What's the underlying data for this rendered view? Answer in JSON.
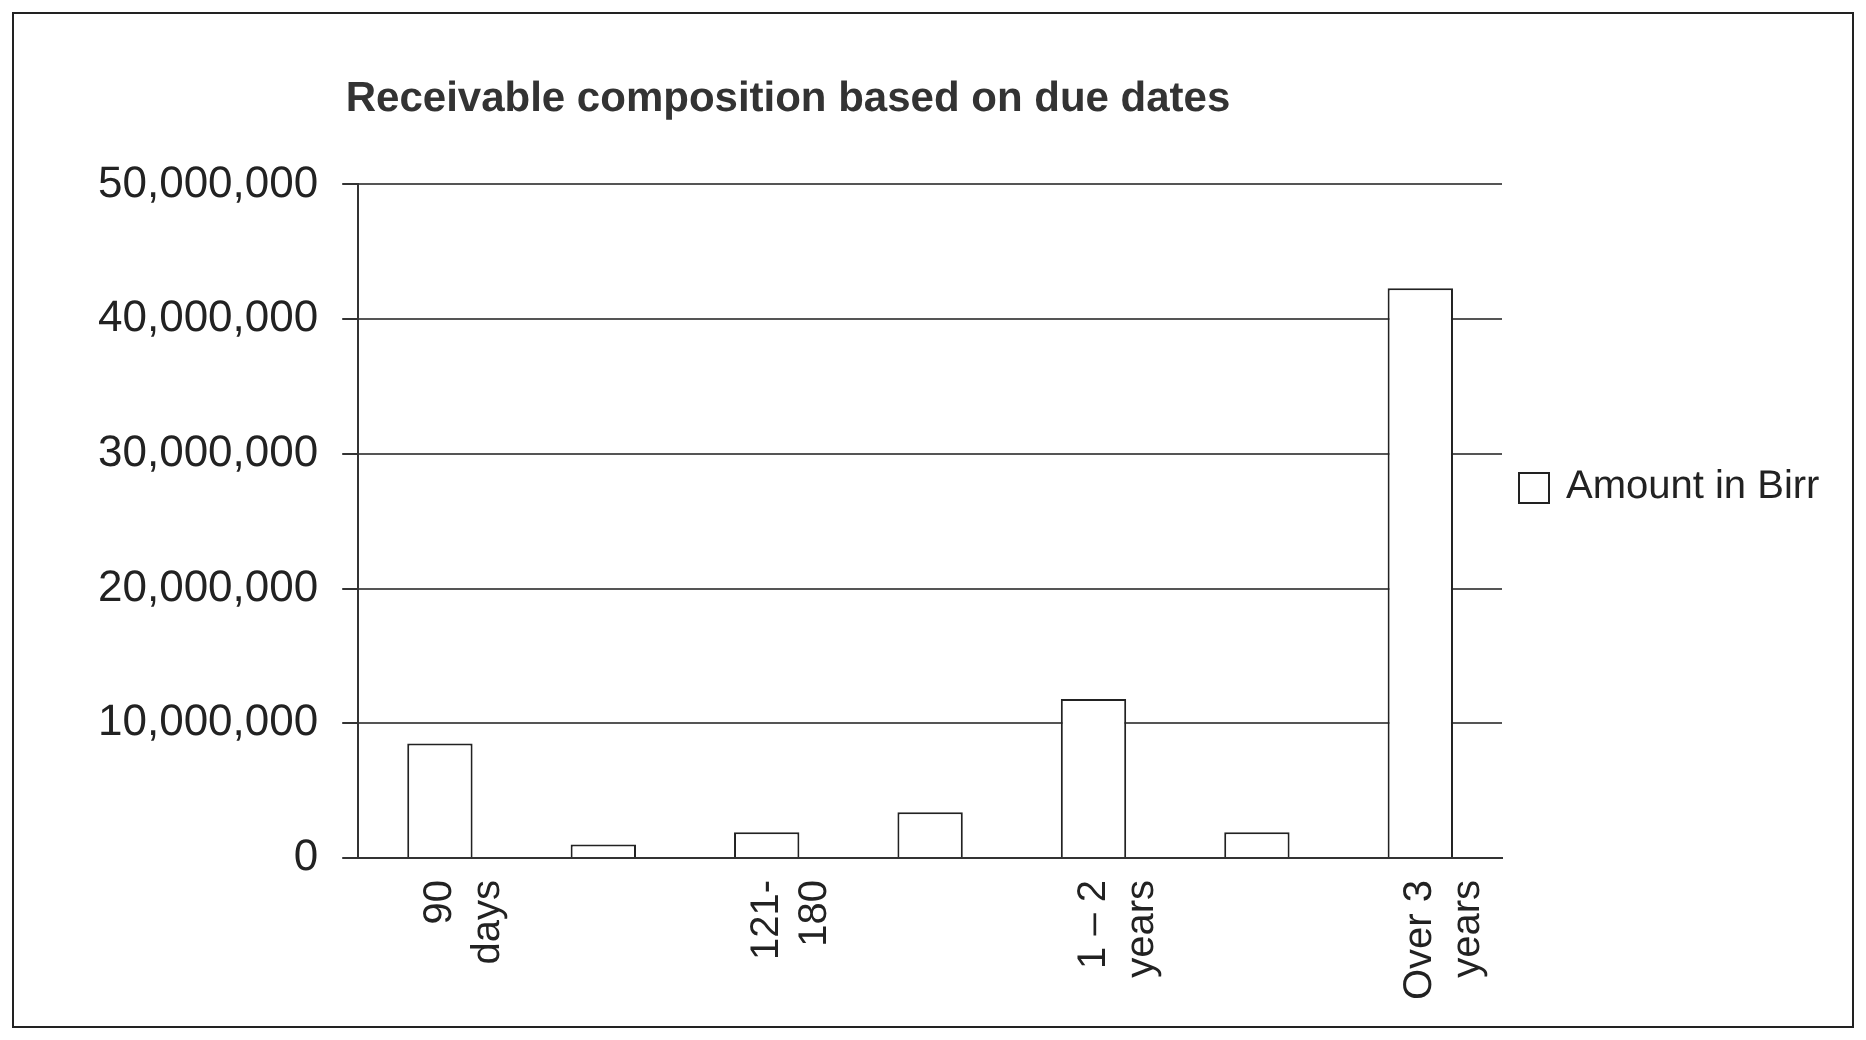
{
  "chart_data": {
    "type": "bar",
    "title": "Receivable composition based on due dates",
    "categories": [
      "90 days",
      null,
      "121-180",
      null,
      "1 – 2 years",
      null,
      "Over 3 years"
    ],
    "series": [
      {
        "name": "Amount in Birr",
        "color": "#ffffff",
        "values": [
          8500000,
          1000000,
          1900000,
          3400000,
          11800000,
          1900000,
          42300000
        ]
      }
    ],
    "ylim": [
      0,
      50000000
    ],
    "yticks": [
      0,
      {
        "value": 10000000,
        "label": "10,000,000"
      },
      {
        "value": 20000000,
        "label": "20,000,000"
      },
      {
        "value": 30000000,
        "label": "30,000,000"
      },
      {
        "value": 40000000,
        "label": "40,000,000"
      },
      {
        "value": 50000000,
        "label": "50,000,000"
      }
    ],
    "grid": "y",
    "legend": "right"
  }
}
